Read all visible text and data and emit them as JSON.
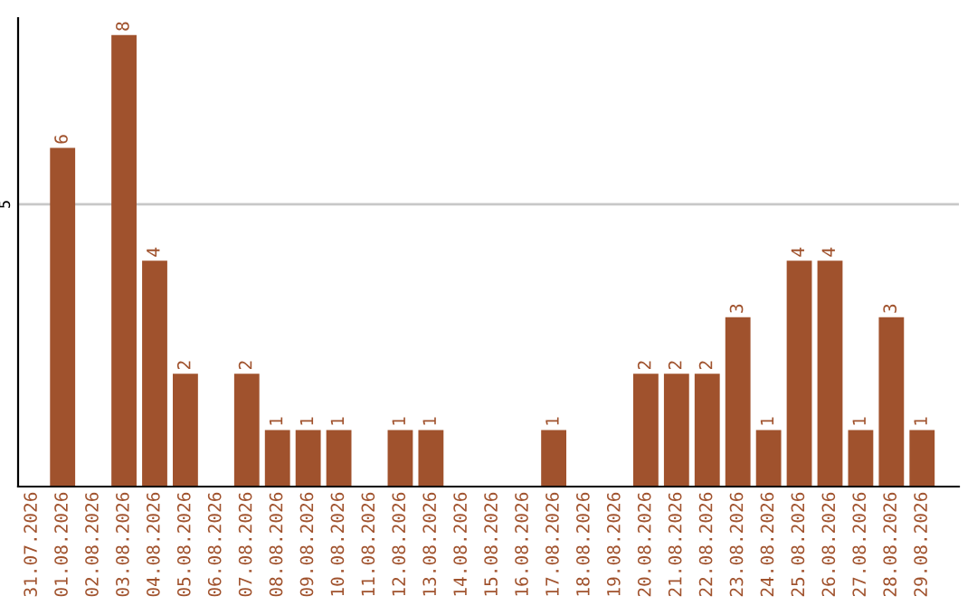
{
  "chart_data": {
    "type": "bar",
    "categories": [
      "31.07.2026",
      "01.08.2026",
      "02.08.2026",
      "03.08.2026",
      "04.08.2026",
      "05.08.2026",
      "06.08.2026",
      "07.08.2026",
      "08.08.2026",
      "09.08.2026",
      "10.08.2026",
      "11.08.2026",
      "12.08.2026",
      "13.08.2026",
      "14.08.2026",
      "15.08.2026",
      "16.08.2026",
      "17.08.2026",
      "18.08.2026",
      "19.08.2026",
      "20.08.2026",
      "21.08.2026",
      "22.08.2026",
      "23.08.2026",
      "24.08.2026",
      "25.08.2026",
      "26.08.2026",
      "27.08.2026",
      "28.08.2026",
      "29.08.2026"
    ],
    "values": [
      0,
      6,
      0,
      8,
      4,
      2,
      0,
      2,
      1,
      1,
      1,
      0,
      1,
      1,
      0,
      0,
      0,
      1,
      0,
      0,
      2,
      2,
      2,
      3,
      1,
      4,
      4,
      1,
      3,
      1
    ],
    "value_labels": [
      null,
      "6",
      null,
      "8",
      "4",
      "2",
      null,
      "2",
      "1",
      "1",
      "1",
      null,
      "1",
      "1",
      null,
      null,
      null,
      "1",
      null,
      null,
      "2",
      "2",
      "2",
      "3",
      "1",
      "4",
      "4",
      "1",
      "3",
      "1"
    ],
    "color": "#a0522d",
    "ylim": [
      0,
      8.3
    ],
    "yticks": [
      5
    ],
    "grid": "y"
  }
}
